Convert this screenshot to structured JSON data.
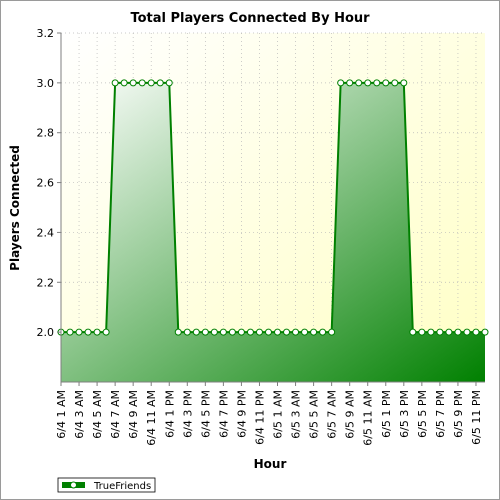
{
  "chart_data": {
    "type": "area",
    "title": "Total Players Connected By Hour",
    "xlabel": "Hour",
    "ylabel": "Players Connected",
    "ylim": [
      1.8,
      3.2
    ],
    "yticks": [
      "2.0",
      "2.2",
      "2.4",
      "2.6",
      "2.8",
      "3.0",
      "3.2"
    ],
    "xtick_labels": [
      "6/4 1 AM",
      "6/4 3 AM",
      "6/4 5 AM",
      "6/4 7 AM",
      "6/4 9 AM",
      "6/4 11 AM",
      "6/4 1 PM",
      "6/4 3 PM",
      "6/4 5 PM",
      "6/4 7 PM",
      "6/4 9 PM",
      "6/4 11 PM",
      "6/5 1 AM",
      "6/5 3 AM",
      "6/5 5 AM",
      "6/5 7 AM",
      "6/5 9 AM",
      "6/5 11 AM",
      "6/5 1 PM",
      "6/5 3 PM",
      "6/5 5 PM",
      "6/5 7 PM",
      "6/5 9 PM",
      "6/5 11 PM"
    ],
    "grid": true,
    "legend_position": "bottom-left",
    "series": [
      {
        "name": "TrueFriends",
        "color": "#008000",
        "values": [
          2,
          2,
          2,
          2,
          2,
          2,
          3,
          3,
          3,
          3,
          3,
          3,
          3,
          2,
          2,
          2,
          2,
          2,
          2,
          2,
          2,
          2,
          2,
          2,
          2,
          2,
          2,
          2,
          2,
          2,
          2,
          3,
          3,
          3,
          3,
          3,
          3,
          3,
          3,
          2,
          2,
          2,
          2,
          2,
          2,
          2,
          2,
          2
        ]
      }
    ]
  }
}
